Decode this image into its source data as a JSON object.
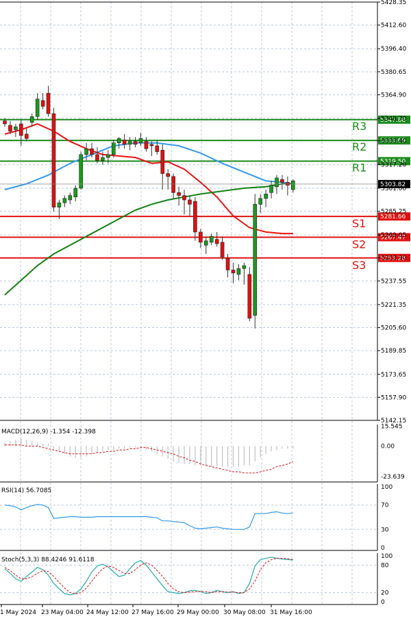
{
  "chart_data": {
    "type": "candlestick",
    "symbol_timeframe": "",
    "price_axis": {
      "min": 5142.15,
      "max": 5428.35,
      "ticks": [
        "5428.35",
        "5412.60",
        "5396.40",
        "5380.65",
        "5364.90",
        "5348.70",
        "5333.40",
        "5317.20",
        "5301.00",
        "5285.25",
        "5269.05",
        "5253.30",
        "5237.55",
        "5221.35",
        "5205.60",
        "5189.85",
        "5173.65",
        "5157.90",
        "5142.15"
      ]
    },
    "current_price": {
      "value": 5303.82,
      "label": "5303.82"
    },
    "levels": [
      {
        "name": "R3",
        "value": 5347.88,
        "label": "5347.88",
        "color": "#1b8a1b"
      },
      {
        "name": "R2",
        "value": 5333.69,
        "label": "5333.69",
        "color": "#1b8a1b"
      },
      {
        "name": "R1",
        "value": 5319.5,
        "label": "5319.50",
        "color": "#1b8a1b"
      },
      {
        "name": "S1",
        "value": 5281.66,
        "label": "5281.66",
        "color": "#e01010"
      },
      {
        "name": "S2",
        "value": 5267.47,
        "label": "5267.47",
        "color": "#e01010"
      },
      {
        "name": "S3",
        "value": 5253.28,
        "label": "5253.28",
        "color": "#e01010"
      }
    ],
    "time_labels": [
      "1 May 2024",
      "23 May 04:00",
      "24 May 12:00",
      "27 May 16:00",
      "29 May 00:00",
      "30 May 08:00",
      "31 May 16:00"
    ],
    "candles": [
      [
        5347,
        5349,
        5343,
        5345
      ],
      [
        5344,
        5347,
        5338,
        5340
      ],
      [
        5341,
        5345,
        5336,
        5343
      ],
      [
        5345,
        5348,
        5330,
        5337
      ],
      [
        5338,
        5342,
        5333,
        5335
      ],
      [
        5346,
        5352,
        5343,
        5350
      ],
      [
        5350,
        5366,
        5348,
        5362
      ],
      [
        5361,
        5366,
        5355,
        5357
      ],
      [
        5366,
        5371,
        5350,
        5352
      ],
      [
        5352,
        5356,
        5285,
        5288
      ],
      [
        5288,
        5293,
        5280,
        5291
      ],
      [
        5291,
        5296,
        5288,
        5294
      ],
      [
        5293,
        5298,
        5290,
        5296
      ],
      [
        5295,
        5303,
        5292,
        5301
      ],
      [
        5301,
        5326,
        5300,
        5324
      ],
      [
        5324,
        5332,
        5320,
        5328
      ],
      [
        5328,
        5332,
        5322,
        5324
      ],
      [
        5324,
        5329,
        5318,
        5320
      ],
      [
        5320,
        5326,
        5317,
        5322
      ],
      [
        5322,
        5327,
        5318,
        5324
      ],
      [
        5324,
        5334,
        5322,
        5332
      ],
      [
        5332,
        5336,
        5328,
        5335
      ],
      [
        5334,
        5338,
        5328,
        5331
      ],
      [
        5331,
        5336,
        5327,
        5333
      ],
      [
        5333,
        5336,
        5329,
        5331
      ],
      [
        5332,
        5339,
        5330,
        5335
      ],
      [
        5333,
        5336,
        5326,
        5328
      ],
      [
        5331,
        5333,
        5323,
        5330
      ],
      [
        5330,
        5334,
        5324,
        5326
      ],
      [
        5327,
        5331,
        5300,
        5311
      ],
      [
        5311,
        5314,
        5300,
        5309
      ],
      [
        5309,
        5311,
        5294,
        5298
      ],
      [
        5298,
        5302,
        5289,
        5296
      ],
      [
        5296,
        5300,
        5283,
        5293
      ],
      [
        5293,
        5296,
        5282,
        5290
      ],
      [
        5292,
        5295,
        5265,
        5271
      ],
      [
        5271,
        5273,
        5260,
        5264
      ],
      [
        5262,
        5268,
        5256,
        5265
      ],
      [
        5264,
        5270,
        5262,
        5268
      ],
      [
        5266,
        5271,
        5261,
        5263
      ],
      [
        5264,
        5268,
        5252,
        5254
      ],
      [
        5253,
        5256,
        5240,
        5245
      ],
      [
        5245,
        5250,
        5236,
        5243
      ],
      [
        5242,
        5249,
        5238,
        5246
      ],
      [
        5246,
        5250,
        5235,
        5248
      ],
      [
        5242,
        5247,
        5210,
        5212
      ],
      [
        5214,
        5297,
        5205,
        5290
      ],
      [
        5290,
        5297,
        5284,
        5294
      ],
      [
        5294,
        5300,
        5288,
        5297
      ],
      [
        5298,
        5306,
        5294,
        5303
      ],
      [
        5302,
        5310,
        5297,
        5308
      ],
      [
        5307,
        5310,
        5300,
        5305
      ],
      [
        5305,
        5309,
        5296,
        5303
      ],
      [
        5300,
        5307,
        5298,
        5306
      ]
    ],
    "moving_averages": [
      {
        "color": "#3399ee",
        "points": [
          [
            0,
            5300
          ],
          [
            4,
            5304
          ],
          [
            8,
            5310
          ],
          [
            12,
            5318
          ],
          [
            16,
            5324
          ],
          [
            20,
            5330
          ],
          [
            24,
            5332
          ],
          [
            28,
            5332
          ],
          [
            32,
            5330
          ],
          [
            36,
            5325
          ],
          [
            40,
            5318
          ],
          [
            44,
            5312
          ],
          [
            48,
            5306
          ],
          [
            51,
            5305
          ],
          [
            53,
            5304
          ]
        ]
      },
      {
        "color": "#ee1111",
        "points": [
          [
            0,
            5338
          ],
          [
            3,
            5341
          ],
          [
            6,
            5345
          ],
          [
            9,
            5340
          ],
          [
            12,
            5333
          ],
          [
            15,
            5328
          ],
          [
            18,
            5324
          ],
          [
            21,
            5323
          ],
          [
            24,
            5322
          ],
          [
            27,
            5318
          ],
          [
            30,
            5319
          ],
          [
            33,
            5314
          ],
          [
            36,
            5305
          ],
          [
            39,
            5295
          ],
          [
            42,
            5282
          ],
          [
            45,
            5274
          ],
          [
            48,
            5271
          ],
          [
            51,
            5270
          ],
          [
            53,
            5270
          ]
        ]
      },
      {
        "color": "#128012",
        "points": [
          [
            0,
            5228
          ],
          [
            3,
            5238
          ],
          [
            6,
            5248
          ],
          [
            9,
            5256
          ],
          [
            12,
            5262
          ],
          [
            15,
            5268
          ],
          [
            18,
            5274
          ],
          [
            21,
            5280
          ],
          [
            24,
            5286
          ],
          [
            27,
            5290
          ],
          [
            30,
            5293
          ],
          [
            33,
            5295
          ],
          [
            36,
            5297
          ],
          [
            40,
            5299
          ],
          [
            44,
            5301
          ],
          [
            48,
            5302
          ],
          [
            51,
            5304
          ],
          [
            53,
            5304
          ]
        ]
      }
    ],
    "macd": {
      "title": "MACD(12,26,9) -1.354 -12.398",
      "ticks": [
        "15.545",
        "0.00",
        "-23.639"
      ],
      "range": [
        -28,
        17
      ],
      "histogram": [
        3,
        4,
        5,
        6,
        5,
        4,
        3,
        2,
        2,
        -2,
        -4,
        -6,
        -8,
        -9,
        -9,
        -8,
        -6,
        -5,
        -4,
        -3,
        -3,
        -2,
        -2,
        -1,
        -1,
        -2,
        -3,
        -4,
        -6,
        -8,
        -10,
        -12,
        -13,
        -14,
        -14,
        -15,
        -15,
        -16,
        -16,
        -16,
        -16,
        -16,
        -16,
        -16,
        -15,
        -15,
        -12,
        -9,
        -6,
        -4,
        -3,
        -2,
        -2,
        -2
      ],
      "signal": [
        1,
        1,
        1,
        1,
        0,
        0,
        0,
        -1,
        -2,
        -3,
        -4,
        -5,
        -6,
        -6,
        -6,
        -6,
        -6,
        -5,
        -5,
        -4,
        -4,
        -3,
        -3,
        -2,
        -2,
        -1,
        -1,
        -2,
        -3,
        -4,
        -5,
        -6,
        -8,
        -9,
        -11,
        -12,
        -14,
        -15,
        -16,
        -17,
        -18,
        -19,
        -20,
        -20,
        -21,
        -21,
        -21,
        -20,
        -19,
        -18,
        -16,
        -15,
        -14,
        -12
      ]
    },
    "rsi": {
      "title": "RSI(14) 56.7085",
      "ticks": [
        "100",
        "70",
        "30",
        "0"
      ],
      "values": [
        70,
        69,
        67,
        62,
        66,
        69,
        71,
        70,
        66,
        48,
        49,
        50,
        51,
        51,
        50,
        50,
        50,
        51,
        51,
        51,
        51,
        51,
        51,
        51,
        51,
        51,
        51,
        50,
        49,
        44,
        44,
        43,
        42,
        41,
        36,
        32,
        31,
        32,
        33,
        34,
        32,
        31,
        30,
        30,
        30,
        34,
        56,
        56,
        56,
        58,
        59,
        57,
        56,
        57
      ]
    },
    "stoch": {
      "title": "Stoch(5,3,3) 88.4246 91.6118",
      "ticks": [
        "100",
        "80",
        "20",
        "0"
      ],
      "k": [
        72,
        62,
        50,
        45,
        55,
        65,
        75,
        70,
        58,
        40,
        28,
        18,
        15,
        18,
        28,
        45,
        65,
        78,
        82,
        76,
        65,
        55,
        58,
        72,
        85,
        90,
        80,
        65,
        50,
        35,
        22,
        20,
        18,
        20,
        24,
        25,
        22,
        18,
        20,
        25,
        22,
        20,
        22,
        18,
        20,
        40,
        78,
        92,
        95,
        97,
        95,
        93,
        92,
        91
      ],
      "d": [
        75,
        68,
        58,
        50,
        50,
        55,
        62,
        68,
        66,
        55,
        42,
        30,
        20,
        17,
        20,
        30,
        45,
        60,
        72,
        78,
        75,
        68,
        62,
        62,
        70,
        80,
        85,
        80,
        68,
        55,
        40,
        28,
        22,
        20,
        21,
        22,
        23,
        22,
        20,
        22,
        22,
        21,
        21,
        20,
        20,
        28,
        45,
        70,
        85,
        92,
        95,
        95,
        94,
        92
      ]
    }
  }
}
